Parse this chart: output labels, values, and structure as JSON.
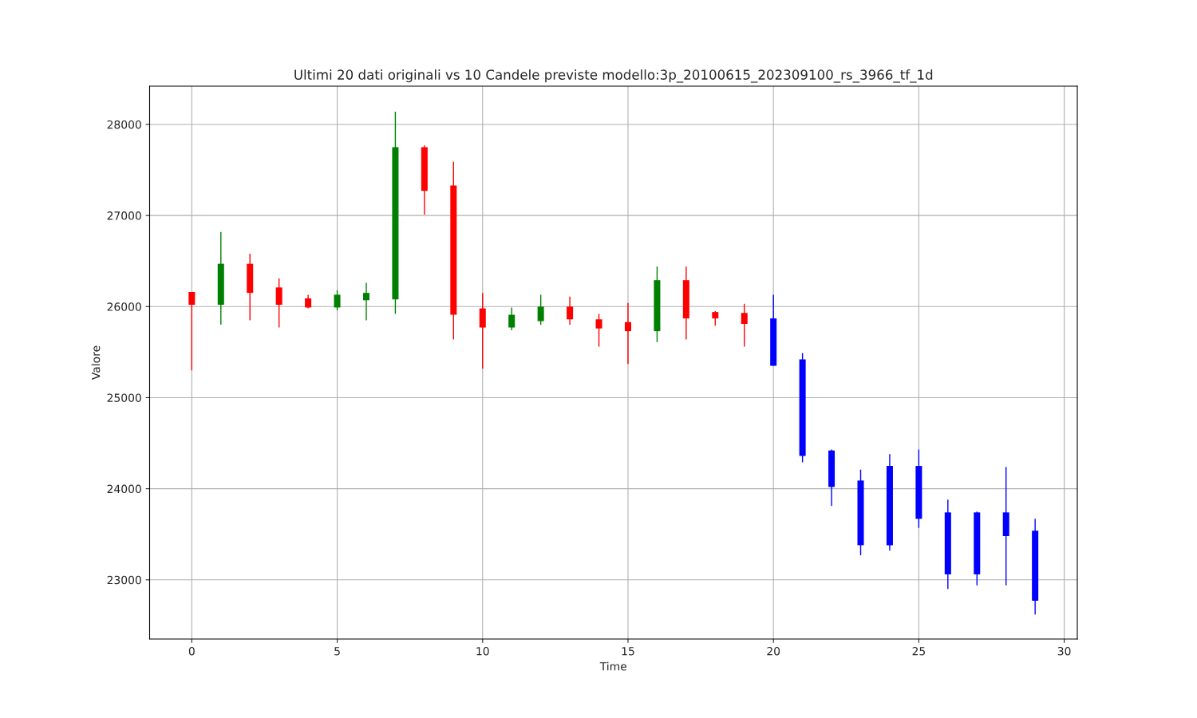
{
  "chart_data": {
    "type": "candlestick",
    "title": "Ultimi 20 dati originali vs 10 Candele previste modello:3p_20100615_202309100_rs_3966_tf_1d",
    "xlabel": "Time",
    "ylabel": "Valore",
    "x": [
      0,
      1,
      2,
      3,
      4,
      5,
      6,
      7,
      8,
      9,
      10,
      11,
      12,
      13,
      14,
      15,
      16,
      17,
      18,
      19,
      20,
      21,
      22,
      23,
      24,
      25,
      26,
      27,
      28,
      29
    ],
    "ohlc": [
      [
        26160,
        26160,
        25300,
        26020
      ],
      [
        26020,
        26820,
        25800,
        26470
      ],
      [
        26470,
        26580,
        25850,
        26150
      ],
      [
        26210,
        26310,
        25770,
        26020
      ],
      [
        26090,
        26130,
        25980,
        25990
      ],
      [
        25990,
        26180,
        25960,
        26130
      ],
      [
        26070,
        26260,
        25850,
        26150
      ],
      [
        26080,
        28140,
        25920,
        27750
      ],
      [
        27750,
        27770,
        27010,
        27270
      ],
      [
        27330,
        27590,
        25640,
        25910
      ],
      [
        25980,
        26150,
        25320,
        25770
      ],
      [
        25770,
        25990,
        25740,
        25910
      ],
      [
        25840,
        26130,
        25800,
        26000
      ],
      [
        26000,
        26110,
        25800,
        25860
      ],
      [
        25860,
        25920,
        25560,
        25760
      ],
      [
        25830,
        26040,
        25370,
        25730
      ],
      [
        25730,
        26440,
        25610,
        26290
      ],
      [
        26290,
        26440,
        25640,
        25870
      ],
      [
        25940,
        25950,
        25790,
        25870
      ],
      [
        25930,
        26030,
        25560,
        25810
      ],
      [
        25870,
        26130,
        25350,
        25350
      ],
      [
        25420,
        25490,
        24290,
        24360
      ],
      [
        24420,
        24430,
        23810,
        24020
      ],
      [
        24090,
        24210,
        23270,
        23380
      ],
      [
        24250,
        24380,
        23320,
        23380
      ],
      [
        24250,
        24430,
        23570,
        23670
      ],
      [
        23740,
        23880,
        22900,
        23060
      ],
      [
        23740,
        23750,
        22940,
        23060
      ],
      [
        23740,
        24240,
        22940,
        23480
      ],
      [
        23540,
        23670,
        22620,
        22770
      ]
    ],
    "colors": [
      "#ff0000",
      "#008000",
      "#ff0000",
      "#ff0000",
      "#ff0000",
      "#008000",
      "#008000",
      "#008000",
      "#ff0000",
      "#ff0000",
      "#ff0000",
      "#008000",
      "#008000",
      "#ff0000",
      "#ff0000",
      "#ff0000",
      "#008000",
      "#ff0000",
      "#ff0000",
      "#ff0000",
      "#0000ff",
      "#0000ff",
      "#0000ff",
      "#0000ff",
      "#0000ff",
      "#0000ff",
      "#0000ff",
      "#0000ff",
      "#0000ff",
      "#0000ff"
    ],
    "xlim": [
      -1.45,
      30.45
    ],
    "ylim": [
      22350,
      28420
    ],
    "xticks": [
      0,
      5,
      10,
      15,
      20,
      25,
      30
    ],
    "yticks": [
      23000,
      24000,
      25000,
      26000,
      27000,
      28000
    ],
    "grid": true
  }
}
